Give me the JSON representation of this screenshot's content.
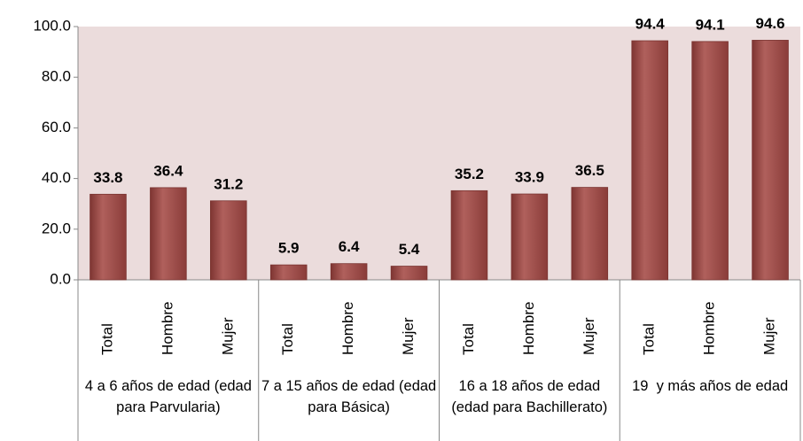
{
  "chart_data": {
    "type": "bar",
    "color": "#a3524f",
    "plot_background": "#ebdcdc",
    "ylim": [
      0,
      100
    ],
    "yticks": [
      {
        "value": 0,
        "label": "0.0"
      },
      {
        "value": 20,
        "label": "20.0"
      },
      {
        "value": 40,
        "label": "40.0"
      },
      {
        "value": 60,
        "label": "60.0"
      },
      {
        "value": 80,
        "label": "80.0"
      },
      {
        "value": 100,
        "label": "100.0"
      }
    ],
    "groups": [
      {
        "name": "4 a 6 años de edad (edad para Parvularia)",
        "categories": [
          "Total",
          "Hombre",
          "Mujer"
        ],
        "values": [
          33.8,
          36.4,
          31.2
        ]
      },
      {
        "name": "7 a 15 años de edad (edad para Básica)",
        "categories": [
          "Total",
          "Hombre",
          "Mujer"
        ],
        "values": [
          5.9,
          6.4,
          5.4
        ]
      },
      {
        "name": "16 a 18 años de edad (edad para Bachillerato)",
        "categories": [
          "Total",
          "Hombre",
          "Mujer"
        ],
        "values": [
          35.2,
          33.9,
          36.5
        ]
      },
      {
        "name": "19  y más años de edad",
        "categories": [
          "Total",
          "Hombre",
          "Mujer"
        ],
        "values": [
          94.4,
          94.1,
          94.6
        ]
      }
    ]
  }
}
